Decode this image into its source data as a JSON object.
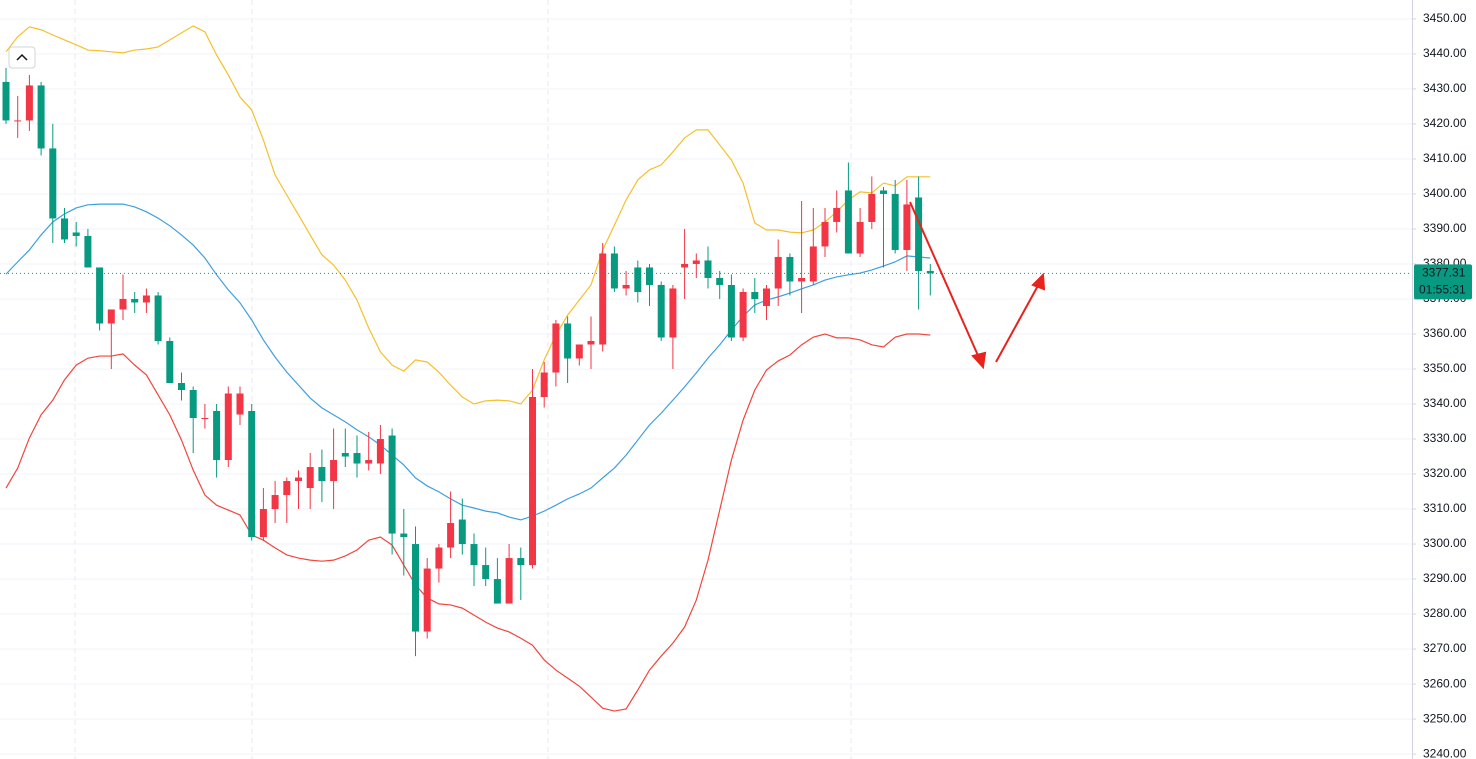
{
  "chart_data": {
    "type": "candlestick",
    "up_color": "#f23645",
    "down_color": "#089981",
    "ylim": [
      3238.6,
      3455.4
    ],
    "yticks": [
      {
        "value": 3240,
        "label": "3240.00"
      },
      {
        "value": 3250,
        "label": "3250.00"
      },
      {
        "value": 3260,
        "label": "3260.00"
      },
      {
        "value": 3270,
        "label": "3270.00"
      },
      {
        "value": 3280,
        "label": "3280.00"
      },
      {
        "value": 3290,
        "label": "3290.00"
      },
      {
        "value": 3300,
        "label": "3300.00"
      },
      {
        "value": 3310,
        "label": "3310.00"
      },
      {
        "value": 3320,
        "label": "3320.00"
      },
      {
        "value": 3330,
        "label": "3330.00"
      },
      {
        "value": 3340,
        "label": "3340.00"
      },
      {
        "value": 3350,
        "label": "3350.00"
      },
      {
        "value": 3360,
        "label": "3360.00"
      },
      {
        "value": 3370,
        "label": "3370.00"
      },
      {
        "value": 3380,
        "label": "3380.00"
      },
      {
        "value": 3390,
        "label": "3390.00"
      },
      {
        "value": 3400,
        "label": "3400.00"
      },
      {
        "value": 3410,
        "label": "3410.00"
      },
      {
        "value": 3420,
        "label": "3420.00"
      },
      {
        "value": 3430,
        "label": "3430.00"
      },
      {
        "value": 3440,
        "label": "3440.00"
      },
      {
        "value": 3450,
        "label": "3450.00"
      }
    ],
    "grid": true,
    "last_price": 3377.31,
    "last_price_color": "#089981",
    "countdown": "01:55:31",
    "ohlc": {
      "open": [
        3432,
        3421,
        3421,
        3431,
        3413,
        3393,
        3389,
        3388,
        3379,
        3363,
        3367,
        3370,
        3369,
        3371,
        3358,
        3346,
        3344,
        3336,
        3338,
        3324,
        3337,
        3338,
        3302,
        3310,
        3314,
        3318,
        3316,
        3322,
        3318,
        3326,
        3326,
        3323,
        3323,
        3331,
        3303,
        3300,
        3275,
        3293,
        3299,
        3307,
        3300,
        3294,
        3290,
        3283,
        3296,
        3294,
        3342,
        3349,
        3363,
        3353,
        3357,
        3357,
        3383,
        3373,
        3379,
        3379,
        3374,
        3359,
        3379,
        3380,
        3381,
        3376,
        3374,
        3359,
        3372,
        3368,
        3373,
        3382,
        3375,
        3375,
        3385,
        3392,
        3401,
        3383,
        3392,
        3401,
        3400,
        3384,
        3399,
        3378
      ],
      "high": [
        3436,
        3428,
        3434,
        3432,
        3420,
        3396,
        3392,
        3390,
        3379,
        3367,
        3377,
        3372,
        3373,
        3372,
        3359,
        3349,
        3345,
        3340,
        3340,
        3345,
        3345,
        3340,
        3316,
        3318,
        3319,
        3321,
        3326,
        3327,
        3333,
        3333,
        3331,
        3332,
        3334,
        3333,
        3310,
        3305,
        3296,
        3300,
        3315,
        3313,
        3303,
        3299,
        3296,
        3300,
        3299,
        3350,
        3352,
        3364,
        3365,
        3357,
        3365,
        3386,
        3385,
        3378,
        3381,
        3380,
        3375,
        3374,
        3390,
        3383,
        3385,
        3378,
        3377,
        3373,
        3376,
        3374,
        3387,
        3383,
        3398,
        3396,
        3396,
        3401,
        3409,
        3396,
        3405,
        3402,
        3404,
        3404,
        3405,
        3380
      ],
      "low": [
        3420,
        3416,
        3418,
        3411,
        3386,
        3386,
        3385,
        3379,
        3361,
        3350,
        3364,
        3366,
        3366,
        3357,
        3346,
        3341,
        3326,
        3333,
        3319,
        3322,
        3334,
        3301,
        3301,
        3306,
        3306,
        3310,
        3310,
        3312,
        3310,
        3322,
        3319,
        3321,
        3320,
        3297,
        3291,
        3268,
        3273,
        3289,
        3296,
        3297,
        3288,
        3288,
        3283,
        3283,
        3284,
        3293,
        3339,
        3345,
        3346,
        3351,
        3350,
        3355,
        3372,
        3371,
        3369,
        3368,
        3358,
        3350,
        3370,
        3376,
        3373,
        3370,
        3358,
        3358,
        3366,
        3364,
        3368,
        3371,
        3366,
        3374,
        3382,
        3389,
        3383,
        3382,
        3390,
        3379,
        3383,
        3378,
        3367,
        3371
      ],
      "close": [
        3421,
        3421,
        3431,
        3413,
        3393,
        3387,
        3388,
        3379,
        3363,
        3367,
        3370,
        3369,
        3371,
        3358,
        3346,
        3344,
        3336,
        3336,
        3324,
        3343,
        3343,
        3302,
        3310,
        3314,
        3318,
        3319,
        3322,
        3318,
        3324,
        3325,
        3323,
        3324,
        3330,
        3303,
        3302,
        3275,
        3293,
        3299,
        3306,
        3300,
        3294,
        3290,
        3283,
        3296,
        3294,
        3342,
        3349,
        3363,
        3353,
        3357,
        3358,
        3383,
        3373,
        3374,
        3372,
        3374,
        3359,
        3373,
        3380,
        3381,
        3376,
        3374,
        3359,
        3372,
        3370,
        3373,
        3382,
        3375,
        3376,
        3385,
        3392,
        3396,
        3383,
        3392,
        3400,
        3400,
        3384,
        3397,
        3378,
        3377.31
      ]
    },
    "bands": [
      {
        "color": "#f5c02c",
        "values": [
          3440.6,
          3444.9,
          3447.7,
          3446.9,
          3445.4,
          3444.0,
          3442.6,
          3441.1,
          3440.9,
          3440.6,
          3440.3,
          3441.1,
          3441.4,
          3442.0,
          3444.0,
          3446.0,
          3448.0,
          3446.3,
          3439.7,
          3434.0,
          3427.7,
          3424.0,
          3415.4,
          3405.4,
          3399.7,
          3394.0,
          3388.3,
          3382.6,
          3379.7,
          3375.4,
          3369.7,
          3361.7,
          3354.9,
          3351.1,
          3349.4,
          3352.6,
          3352.0,
          3349.1,
          3345.4,
          3342.0,
          3340.0,
          3340.9,
          3341.1,
          3340.9,
          3340.0,
          3344.0,
          3352.6,
          3359.7,
          3365.4,
          3369.7,
          3374.0,
          3384.0,
          3391.1,
          3398.3,
          3404.0,
          3406.9,
          3408.3,
          3412.0,
          3416.0,
          3418.3,
          3418.3,
          3414.0,
          3409.7,
          3403.1,
          3391.7,
          3389.7,
          3389.7,
          3389.1,
          3388.9,
          3389.7,
          3392.0,
          3394.9,
          3398.3,
          3400.6,
          3400.3,
          3403.1,
          3402.3,
          3404.9,
          3404.9,
          3404.9
        ]
      },
      {
        "color": "#3d9fe0",
        "values": [
          3377.1,
          3380.6,
          3384.0,
          3388.3,
          3392.0,
          3394.3,
          3396.0,
          3396.9,
          3397.1,
          3397.1,
          3397.1,
          3396.3,
          3394.9,
          3393.1,
          3390.9,
          3388.3,
          3385.4,
          3381.7,
          3376.9,
          3372.6,
          3368.9,
          3364.0,
          3358.3,
          3353.4,
          3349.1,
          3345.4,
          3341.7,
          3338.9,
          3336.9,
          3334.9,
          3332.6,
          3330.6,
          3328.3,
          3325.4,
          3322.6,
          3318.9,
          3316.6,
          3314.9,
          3312.9,
          3311.1,
          3310.3,
          3309.4,
          3308.9,
          3307.7,
          3306.9,
          3308.0,
          3309.4,
          3311.1,
          3312.9,
          3314.3,
          3316.0,
          3318.9,
          3321.7,
          3325.4,
          3329.7,
          3334.0,
          3337.4,
          3341.1,
          3344.9,
          3348.9,
          3353.1,
          3356.9,
          3361.1,
          3365.1,
          3368.3,
          3369.7,
          3370.6,
          3371.7,
          3372.9,
          3374.0,
          3375.4,
          3376.3,
          3376.9,
          3377.4,
          3378.3,
          3379.4,
          3380.6,
          3382.3,
          3382.0,
          3381.7
        ]
      },
      {
        "color": "#f0463c",
        "values": [
          3316.0,
          3321.7,
          3330.3,
          3336.9,
          3341.1,
          3346.9,
          3351.1,
          3353.1,
          3353.7,
          3353.7,
          3354.3,
          3351.1,
          3348.3,
          3342.6,
          3336.9,
          3329.7,
          3321.1,
          3314.0,
          3311.1,
          3309.7,
          3308.3,
          3302.6,
          3301.1,
          3298.9,
          3296.9,
          3296.0,
          3295.4,
          3295.1,
          3295.4,
          3296.6,
          3298.3,
          3301.1,
          3302.0,
          3299.7,
          3294.0,
          3288.3,
          3284.6,
          3282.9,
          3282.6,
          3281.7,
          3279.7,
          3277.7,
          3276.0,
          3274.9,
          3273.1,
          3271.1,
          3266.9,
          3264.0,
          3261.7,
          3259.4,
          3256.3,
          3253.1,
          3252.3,
          3252.9,
          3258.3,
          3264.0,
          3268.0,
          3271.7,
          3276.3,
          3284.0,
          3295.4,
          3309.7,
          3324.0,
          3335.4,
          3344.0,
          3349.7,
          3352.3,
          3354.0,
          3356.9,
          3359.1,
          3360.0,
          3358.9,
          3358.9,
          3358.3,
          3356.9,
          3356.3,
          3359.1,
          3360.0,
          3360.0,
          3359.7
        ]
      }
    ]
  }
}
